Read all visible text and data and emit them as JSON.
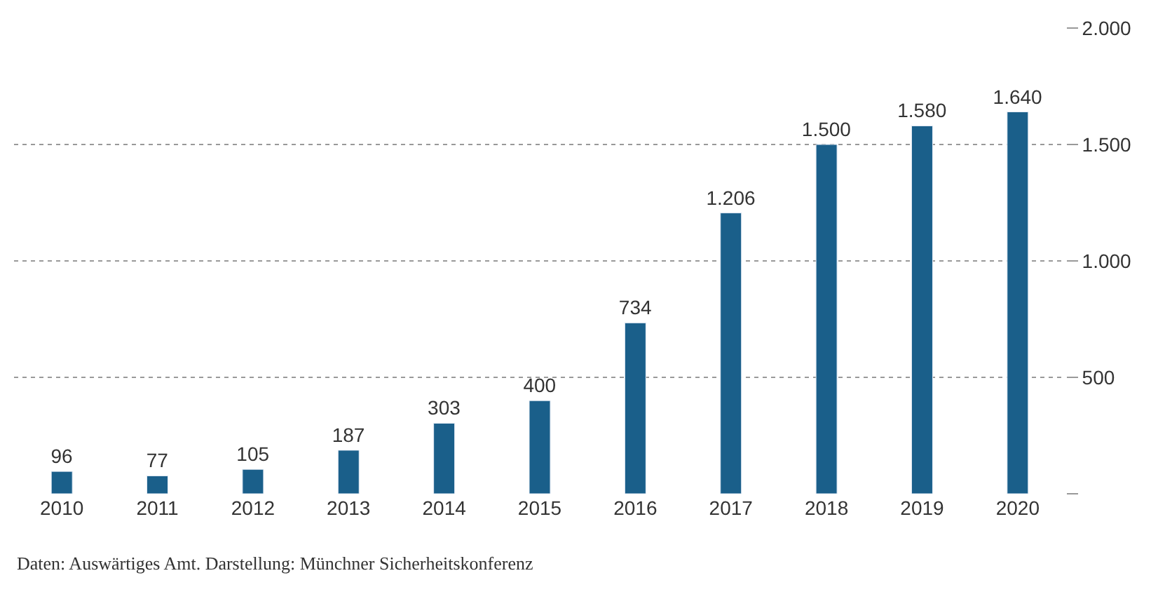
{
  "chart_data": {
    "type": "bar",
    "categories": [
      "2010",
      "2011",
      "2012",
      "2013",
      "2014",
      "2015",
      "2016",
      "2017",
      "2018",
      "2019",
      "2020"
    ],
    "values": [
      96,
      77,
      105,
      187,
      303,
      400,
      734,
      1206,
      1500,
      1580,
      1640
    ],
    "value_labels": [
      "96",
      "77",
      "105",
      "187",
      "303",
      "400",
      "734",
      "1.206",
      "1.500",
      "1.580",
      "1.640"
    ],
    "color": "#1a5f8a",
    "ylim": [
      0,
      2000
    ],
    "yticks": [
      {
        "value": 0,
        "label": null
      },
      500,
      {
        "value": 1000,
        "label": "1.000"
      },
      {
        "value": 1500,
        "label": "1.500"
      },
      {
        "value": 2000,
        "label": "2.000"
      }
    ],
    "grid": "y",
    "annotations": [
      "Daten: Auswärtiges Amt. Darstellung: Münchner Sicherheitskonferenz"
    ]
  }
}
